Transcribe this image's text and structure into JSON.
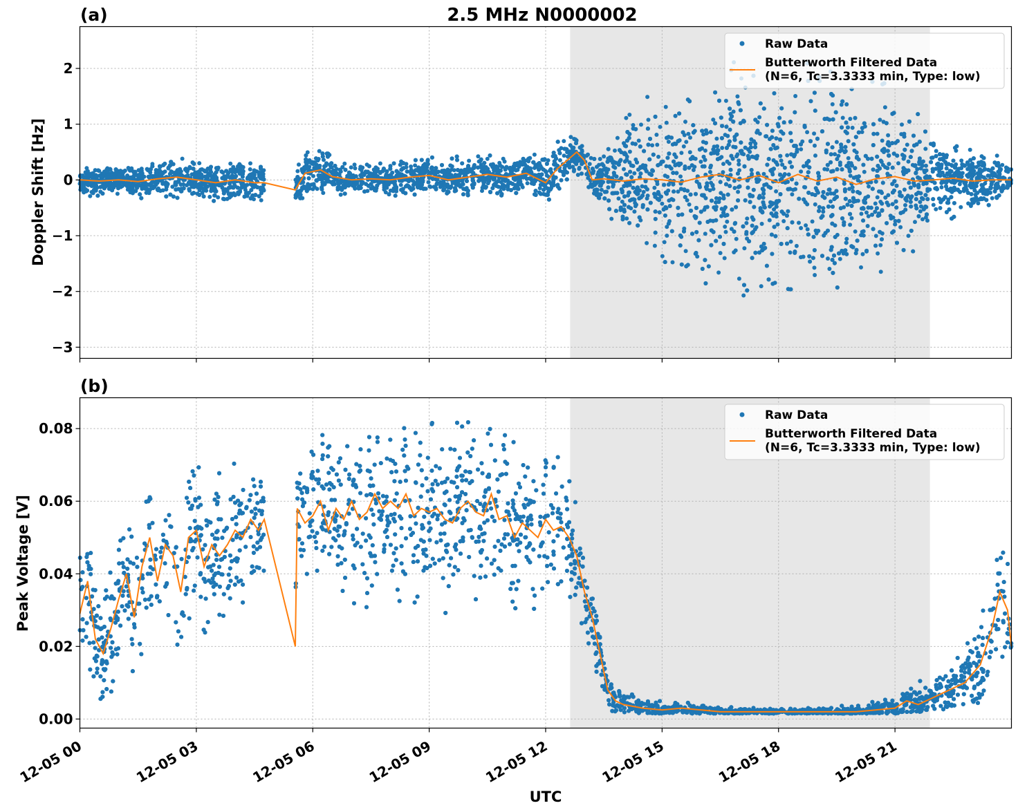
{
  "figure": {
    "title": "2.5 MHz N0000002",
    "xlabel": "UTC",
    "x_tick_labels": [
      "12-05 00",
      "12-05 03",
      "12-05 06",
      "12-05 09",
      "12-05 12",
      "12-05 15",
      "12-05 18",
      "12-05 21"
    ],
    "colors": {
      "raw": "#1f77b4",
      "filtered": "#ff7f0e",
      "shade": "#e7e7e7",
      "grid": "#b0b0b0"
    }
  },
  "chart_data": [
    {
      "panel_label": "(a)",
      "type": "scatter",
      "ylabel": "Doppler Shift [Hz]",
      "xlim": [
        "12-05 00:00",
        "12-05 24:00"
      ],
      "ylim": [
        -3.2,
        2.75
      ],
      "y_ticks": [
        2,
        1,
        0,
        -1,
        -2,
        -3
      ],
      "y_tick_labels": [
        "2",
        "1",
        "0",
        "−1",
        "−2",
        "−3"
      ],
      "x_ticks_hours": [
        0,
        3,
        6,
        9,
        12,
        15,
        18,
        21
      ],
      "shaded_region_hours": [
        12.63,
        21.9
      ],
      "data_gap_hours": [
        4.75,
        5.55
      ],
      "legend": {
        "placement": "top-right",
        "raw_label": "Raw Data",
        "filtered_label_line1": "Butterworth Filtered Data",
        "filtered_label_line2": "(N=6, Tc=3.3333 min, Type: low)"
      },
      "filtered_series": {
        "x_hours": [
          0,
          0.5,
          1,
          1.5,
          2,
          2.5,
          3,
          3.5,
          4,
          4.5,
          4.75,
          5.55,
          5.8,
          6.2,
          6.5,
          7,
          7.5,
          8,
          8.5,
          9,
          9.5,
          10,
          10.5,
          11,
          11.5,
          12,
          12.3,
          12.6,
          12.8,
          13.0,
          13.2,
          13.5,
          14,
          14.5,
          15,
          15.5,
          16,
          16.5,
          17,
          17.5,
          18,
          18.5,
          19,
          19.5,
          20,
          20.5,
          21,
          21.5,
          22,
          22.5,
          23,
          23.5,
          24
        ],
        "y": [
          0.0,
          -0.02,
          0.0,
          -0.03,
          0.02,
          0.05,
          0.0,
          -0.05,
          0.0,
          -0.05,
          -0.05,
          -0.18,
          0.12,
          0.18,
          0.06,
          0.0,
          0.02,
          0.0,
          0.05,
          0.08,
          0.0,
          0.05,
          0.1,
          0.05,
          0.12,
          -0.05,
          0.2,
          0.38,
          0.5,
          0.35,
          0.0,
          0.02,
          -0.02,
          0.02,
          0.0,
          -0.04,
          0.05,
          0.1,
          0.0,
          0.08,
          -0.05,
          0.1,
          -0.02,
          0.05,
          -0.08,
          0.02,
          0.06,
          -0.02,
          0.0,
          0.03,
          -0.02,
          0.0,
          0.0
        ]
      },
      "raw_envelope": {
        "x_hours": [
          0,
          1,
          2,
          3,
          4,
          4.75,
          5.55,
          6,
          7,
          8,
          9,
          10,
          11,
          12,
          12.5,
          13,
          13.5,
          14,
          15,
          16,
          17,
          18,
          19,
          20,
          21,
          21.5,
          22,
          23,
          24
        ],
        "upper": [
          0.25,
          0.2,
          0.35,
          0.4,
          0.35,
          0.3,
          0.8,
          0.65,
          0.3,
          0.35,
          0.5,
          0.4,
          0.5,
          0.5,
          0.8,
          0.75,
          0.8,
          1.3,
          1.7,
          2.0,
          2.2,
          2.2,
          2.2,
          2.0,
          1.7,
          1.3,
          1.0,
          0.7,
          0.3
        ],
        "lower": [
          -0.4,
          -0.3,
          -0.4,
          -0.35,
          -0.45,
          -0.55,
          -0.35,
          -0.3,
          -0.35,
          -0.3,
          -0.3,
          -0.3,
          -0.3,
          -0.4,
          -0.2,
          -0.1,
          -0.4,
          -1.2,
          -1.6,
          -1.9,
          -2.1,
          -2.2,
          -2.1,
          -2.0,
          -1.6,
          -1.3,
          -0.9,
          -0.6,
          -0.3
        ]
      }
    },
    {
      "panel_label": "(b)",
      "type": "scatter",
      "ylabel": "Peak Voltage [V]",
      "xlim": [
        "12-05 00:00",
        "12-05 24:00"
      ],
      "ylim": [
        -0.0025,
        0.0885
      ],
      "y_ticks": [
        0.08,
        0.06,
        0.04,
        0.02,
        0.0
      ],
      "y_tick_labels": [
        "0.08",
        "0.06",
        "0.04",
        "0.02",
        "0.00"
      ],
      "x_ticks_hours": [
        0,
        3,
        6,
        9,
        12,
        15,
        18,
        21
      ],
      "shaded_region_hours": [
        12.63,
        21.9
      ],
      "data_gap_hours": [
        4.75,
        5.55
      ],
      "legend": {
        "placement": "top-right",
        "raw_label": "Raw Data",
        "filtered_label_line1": "Butterworth Filtered Data",
        "filtered_label_line2": "(N=6, Tc=3.3333 min, Type: low)"
      },
      "filtered_series": {
        "x_hours": [
          0,
          0.2,
          0.4,
          0.6,
          0.8,
          1.0,
          1.2,
          1.4,
          1.6,
          1.8,
          2.0,
          2.2,
          2.4,
          2.6,
          2.8,
          3.0,
          3.2,
          3.4,
          3.6,
          3.8,
          4.0,
          4.2,
          4.4,
          4.6,
          4.75,
          5.55,
          5.6,
          5.8,
          6.0,
          6.2,
          6.4,
          6.6,
          6.8,
          7.0,
          7.2,
          7.4,
          7.6,
          7.8,
          8.0,
          8.2,
          8.4,
          8.6,
          8.8,
          9.0,
          9.2,
          9.4,
          9.6,
          9.8,
          10.0,
          10.2,
          10.4,
          10.6,
          10.8,
          11.0,
          11.2,
          11.4,
          11.6,
          11.8,
          12.0,
          12.2,
          12.4,
          12.6,
          12.8,
          13.0,
          13.2,
          13.4,
          13.6,
          13.8,
          14.0,
          14.5,
          15.0,
          15.5,
          16.0,
          16.5,
          17.0,
          17.5,
          18.0,
          18.5,
          19.0,
          19.5,
          20.0,
          20.5,
          21.0,
          21.3,
          21.6,
          22.0,
          22.4,
          22.8,
          23.2,
          23.5,
          23.7,
          23.9,
          24.0
        ],
        "y": [
          0.029,
          0.038,
          0.022,
          0.018,
          0.025,
          0.033,
          0.04,
          0.028,
          0.042,
          0.05,
          0.038,
          0.048,
          0.045,
          0.035,
          0.05,
          0.052,
          0.042,
          0.048,
          0.045,
          0.048,
          0.052,
          0.05,
          0.055,
          0.052,
          0.055,
          0.02,
          0.058,
          0.054,
          0.056,
          0.06,
          0.052,
          0.058,
          0.055,
          0.06,
          0.055,
          0.057,
          0.062,
          0.058,
          0.06,
          0.058,
          0.062,
          0.056,
          0.058,
          0.057,
          0.058,
          0.055,
          0.054,
          0.058,
          0.06,
          0.057,
          0.056,
          0.062,
          0.055,
          0.056,
          0.05,
          0.054,
          0.052,
          0.05,
          0.055,
          0.052,
          0.053,
          0.05,
          0.045,
          0.035,
          0.028,
          0.018,
          0.008,
          0.005,
          0.004,
          0.003,
          0.0025,
          0.003,
          0.0025,
          0.002,
          0.002,
          0.002,
          0.002,
          0.002,
          0.002,
          0.002,
          0.002,
          0.0025,
          0.003,
          0.005,
          0.004,
          0.006,
          0.008,
          0.01,
          0.015,
          0.025,
          0.035,
          0.03,
          0.02
        ]
      },
      "raw_envelope": {
        "x_hours": [
          0,
          0.5,
          1,
          1.5,
          2,
          2.5,
          3,
          3.5,
          4,
          4.5,
          4.75,
          5.55,
          6,
          7,
          8,
          9,
          10,
          11,
          12,
          12.6,
          13,
          13.3,
          13.6,
          14,
          15,
          16,
          17,
          18,
          19,
          20,
          21,
          21.5,
          22,
          22.5,
          23,
          23.5,
          24
        ],
        "upper": [
          0.05,
          0.045,
          0.05,
          0.058,
          0.065,
          0.068,
          0.07,
          0.072,
          0.074,
          0.075,
          0.072,
          0.075,
          0.078,
          0.08,
          0.08,
          0.082,
          0.083,
          0.08,
          0.075,
          0.07,
          0.05,
          0.03,
          0.012,
          0.01,
          0.007,
          0.005,
          0.004,
          0.004,
          0.004,
          0.005,
          0.008,
          0.012,
          0.015,
          0.02,
          0.03,
          0.045,
          0.052
        ],
        "lower": [
          0.005,
          0.005,
          0.005,
          0.01,
          0.015,
          0.018,
          0.02,
          0.025,
          0.03,
          0.035,
          0.038,
          0.035,
          0.03,
          0.025,
          0.025,
          0.025,
          0.022,
          0.025,
          0.03,
          0.025,
          0.015,
          0.005,
          0.002,
          0.0015,
          0.0015,
          0.0015,
          0.0015,
          0.0015,
          0.0015,
          0.0015,
          0.0015,
          0.002,
          0.002,
          0.003,
          0.004,
          0.005,
          0.008
        ]
      }
    }
  ]
}
